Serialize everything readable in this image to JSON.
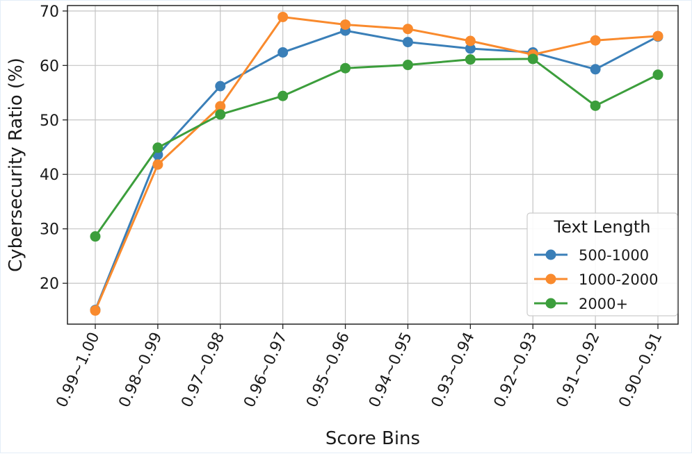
{
  "chart_data": {
    "type": "line",
    "title": "",
    "xlabel": "Score Bins",
    "ylabel": "Cybersecurity Ratio (%)",
    "categories": [
      "0.99~1.00",
      "0.98~0.99",
      "0.97~0.98",
      "0.96~0.97",
      "0.95~0.96",
      "0.94~0.95",
      "0.93~0.94",
      "0.92~0.93",
      "0.91~0.92",
      "0.90~0.91"
    ],
    "ylim": [
      12.5,
      71
    ],
    "yticks": [
      20,
      30,
      40,
      50,
      60,
      70
    ],
    "grid": true,
    "legend": {
      "title": "Text Length",
      "placement": "lower-right"
    },
    "series": [
      {
        "name": "500-1000",
        "color": "#3a7fb8",
        "values": [
          15.1,
          43.6,
          56.2,
          62.4,
          66.4,
          64.3,
          63.1,
          62.4,
          59.3,
          65.3
        ]
      },
      {
        "name": "1000-2000",
        "color": "#f98a2d",
        "values": [
          15.0,
          41.8,
          52.5,
          68.9,
          67.5,
          66.7,
          64.5,
          62.0,
          64.6,
          65.4
        ]
      },
      {
        "name": "2000+",
        "color": "#3c9e3c",
        "values": [
          28.6,
          44.9,
          51.0,
          54.4,
          59.5,
          60.1,
          61.1,
          61.2,
          52.6,
          58.3
        ]
      }
    ]
  }
}
